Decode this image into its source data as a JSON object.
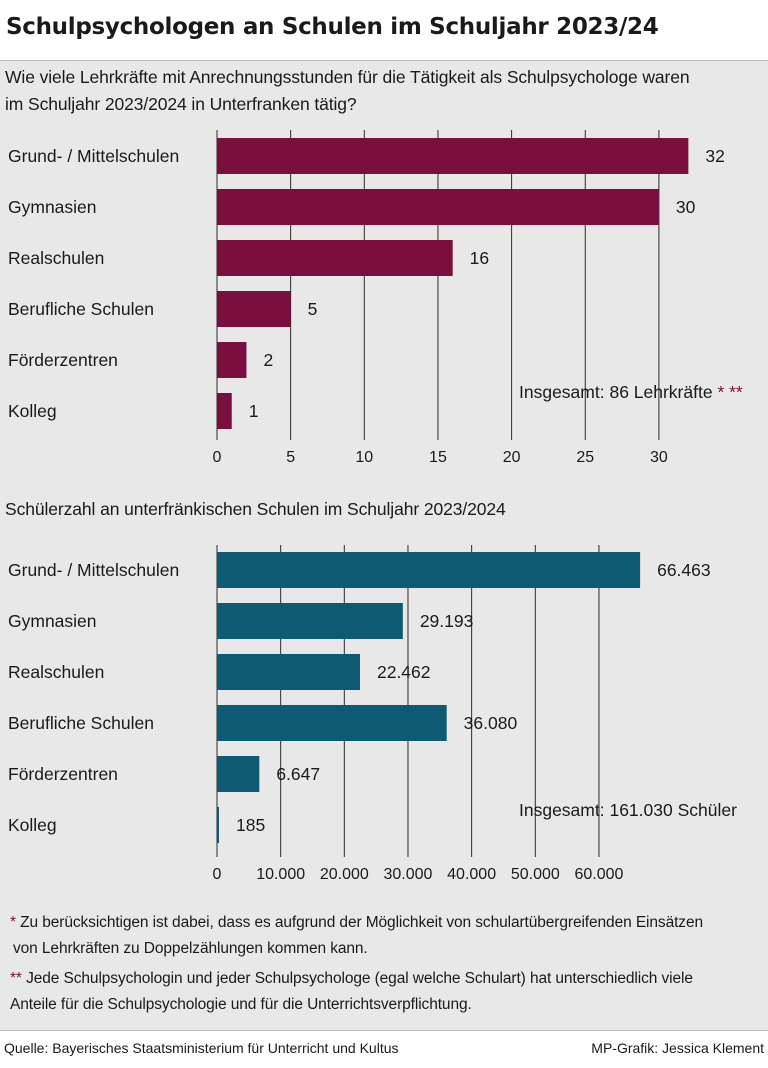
{
  "title": "Schulpsychologen an Schulen im Schuljahr 2023/24",
  "chart_data": [
    {
      "type": "bar",
      "orientation": "horizontal",
      "title": "Wie viele Lehrkräfte mit Anrechnungsstunden für die Tätigkeit als Schulpsychologe waren im Schuljahr 2023/2024 in Unterfranken tätig?",
      "title_lines": [
        "Wie viele Lehrkräfte mit Anrechnungsstunden für die Tätigkeit als Schulpsychologe waren",
        "im Schuljahr 2023/2024 in Unterfranken tätig?"
      ],
      "categories": [
        "Grund- / Mittelschulen",
        "Gymnasien",
        "Realschulen",
        "Berufliche Schulen",
        "Förderzentren",
        "Kolleg"
      ],
      "values": [
        32,
        30,
        16,
        5,
        2,
        1
      ],
      "value_labels": [
        "32",
        "30",
        "16",
        "5",
        "2",
        "1"
      ],
      "xticks": [
        0,
        5,
        10,
        15,
        20,
        25,
        30
      ],
      "xtick_labels": [
        "0",
        "5",
        "10",
        "15",
        "20",
        "25",
        "30"
      ],
      "xlim": [
        0,
        34
      ],
      "grid": true,
      "color": "#7a0e3e",
      "annotation": "Insgesamt: 86 Lehrkräfte",
      "annotation_mark": "* **"
    },
    {
      "type": "bar",
      "orientation": "horizontal",
      "title": "Schülerzahl an unterfränkischen Schulen im Schuljahr 2023/2024",
      "title_lines": [
        "Schülerzahl an unterfränkischen Schulen im Schuljahr 2023/2024"
      ],
      "categories": [
        "Grund- / Mittelschulen",
        "Gymnasien",
        "Realschulen",
        "Berufliche Schulen",
        "Förderzentren",
        "Kolleg"
      ],
      "values": [
        66463,
        29193,
        22462,
        36080,
        6647,
        185
      ],
      "value_labels": [
        "66.463",
        "29.193",
        "22.462",
        "36.080",
        "6.647",
        "185"
      ],
      "xticks": [
        0,
        10000,
        20000,
        30000,
        40000,
        50000,
        60000
      ],
      "xtick_labels": [
        "0",
        "10.000",
        "20.000",
        "30.000",
        "40.000",
        "50.000",
        "60.000"
      ],
      "xlim": [
        0,
        70000
      ],
      "grid": true,
      "color": "#0d5a72",
      "annotation": "Insgesamt: 161.030 Schüler",
      "annotation_mark": ""
    }
  ],
  "footnotes": [
    {
      "mark": "*",
      "lines": [
        "Zu berücksichtigen ist dabei, dass es aufgrund der Möglichkeit von schulartübergreifenden Einsätzen",
        "von Lehrkräften zu Doppelzählungen kommen kann."
      ]
    },
    {
      "mark": "**",
      "lines": [
        "Jede Schulpsychologin und jeder Schulpsychologe (egal welche Schulart) hat unterschiedlich viele",
        "Anteile für die Schulpsychologie und für die Unterrichtsverpflichtung."
      ]
    }
  ],
  "source": "Quelle: Bayerisches Staatsministerium für Unterricht und Kultus",
  "credit": "MP-Grafik: Jessica Klement"
}
